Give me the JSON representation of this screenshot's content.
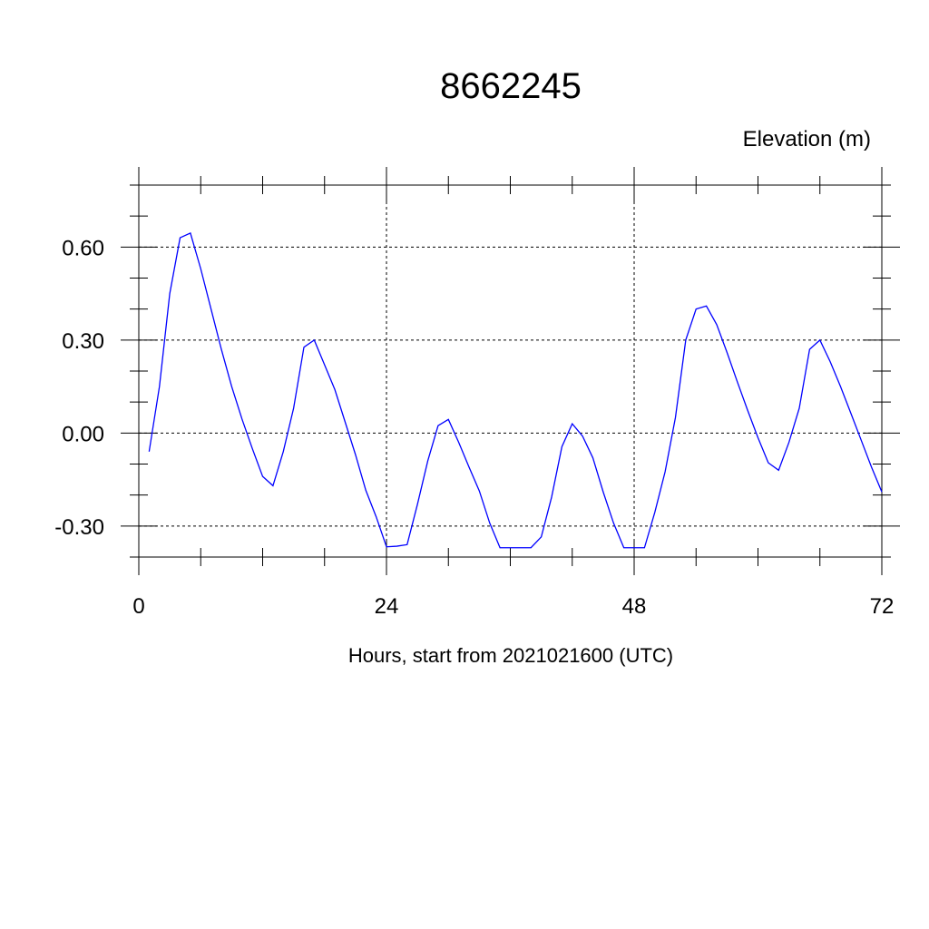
{
  "chart_data": {
    "type": "line",
    "title": "8662245",
    "ylabel": "Elevation (m)",
    "xlabel": "Hours, start from 2021021600 (UTC)",
    "xlim": [
      0,
      72
    ],
    "ylim": [
      -0.4,
      0.8
    ],
    "x_ticks": [
      0,
      24,
      48,
      72
    ],
    "x_tick_labels": [
      "0",
      "24",
      "48",
      "72"
    ],
    "x_minor_step": 6,
    "y_ticks": [
      -0.3,
      0.0,
      0.3,
      0.6
    ],
    "y_tick_labels": [
      "-0.30",
      "0.00",
      "0.30",
      "0.60"
    ],
    "y_minor_step": 0.1,
    "grid": "dashed at major ticks",
    "line_color": "#0000ff",
    "series": [
      {
        "x": [
          1,
          2,
          3,
          4,
          5,
          6,
          7,
          8,
          9,
          10,
          11,
          12,
          13,
          14,
          15,
          16,
          17,
          18,
          19,
          20,
          21,
          22,
          23,
          24,
          25,
          26,
          27,
          28,
          29,
          30,
          31,
          32,
          33,
          34,
          35,
          36,
          37,
          38,
          39,
          40,
          41,
          42,
          43,
          44,
          45,
          46,
          47,
          48,
          49,
          50,
          51,
          52,
          53,
          54,
          55,
          56,
          57,
          58,
          59,
          60,
          61,
          62,
          63,
          64,
          65,
          66,
          67,
          68,
          69,
          70,
          71,
          72
        ],
        "y": [
          -0.06,
          0.15,
          0.45,
          0.63,
          0.645,
          0.53,
          0.4,
          0.27,
          0.15,
          0.045,
          -0.05,
          -0.14,
          -0.17,
          -0.06,
          0.08,
          0.277,
          0.3,
          0.22,
          0.14,
          0.035,
          -0.07,
          -0.185,
          -0.27,
          -0.367,
          -0.365,
          -0.36,
          -0.23,
          -0.09,
          0.024,
          0.044,
          -0.03,
          -0.11,
          -0.187,
          -0.29,
          -0.37,
          -0.37,
          -0.37,
          -0.37,
          -0.335,
          -0.207,
          -0.044,
          0.03,
          -0.01,
          -0.08,
          -0.19,
          -0.29,
          -0.37,
          -0.37,
          -0.37,
          -0.256,
          -0.125,
          0.05,
          0.3,
          0.4,
          0.41,
          0.35,
          0.26,
          0.165,
          0.073,
          -0.015,
          -0.096,
          -0.12,
          -0.03,
          0.08,
          0.27,
          0.3,
          0.23,
          0.15,
          0.064,
          -0.023,
          -0.11,
          -0.19
        ]
      }
    ]
  }
}
